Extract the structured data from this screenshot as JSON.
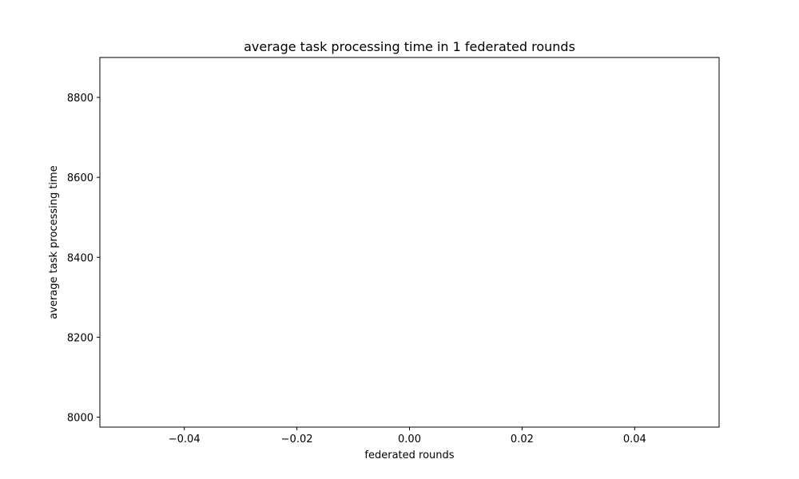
{
  "chart_data": {
    "type": "line",
    "title": "average task processing time in 1 federated rounds",
    "xlabel": "federated rounds",
    "ylabel": "average task processing time",
    "xlim": [
      -0.055,
      0.055
    ],
    "ylim": [
      7975,
      8900
    ],
    "x_ticks": [
      -0.04,
      -0.02,
      0.0,
      0.02,
      0.04
    ],
    "x_tick_labels": [
      "−0.04",
      "−0.02",
      "0.00",
      "0.02",
      "0.04"
    ],
    "y_ticks": [
      8000,
      8200,
      8400,
      8600,
      8800
    ],
    "y_tick_labels": [
      "8000",
      "8200",
      "8400",
      "8600",
      "8800"
    ],
    "grid": false,
    "series": [
      {
        "x": [],
        "values": []
      }
    ]
  }
}
